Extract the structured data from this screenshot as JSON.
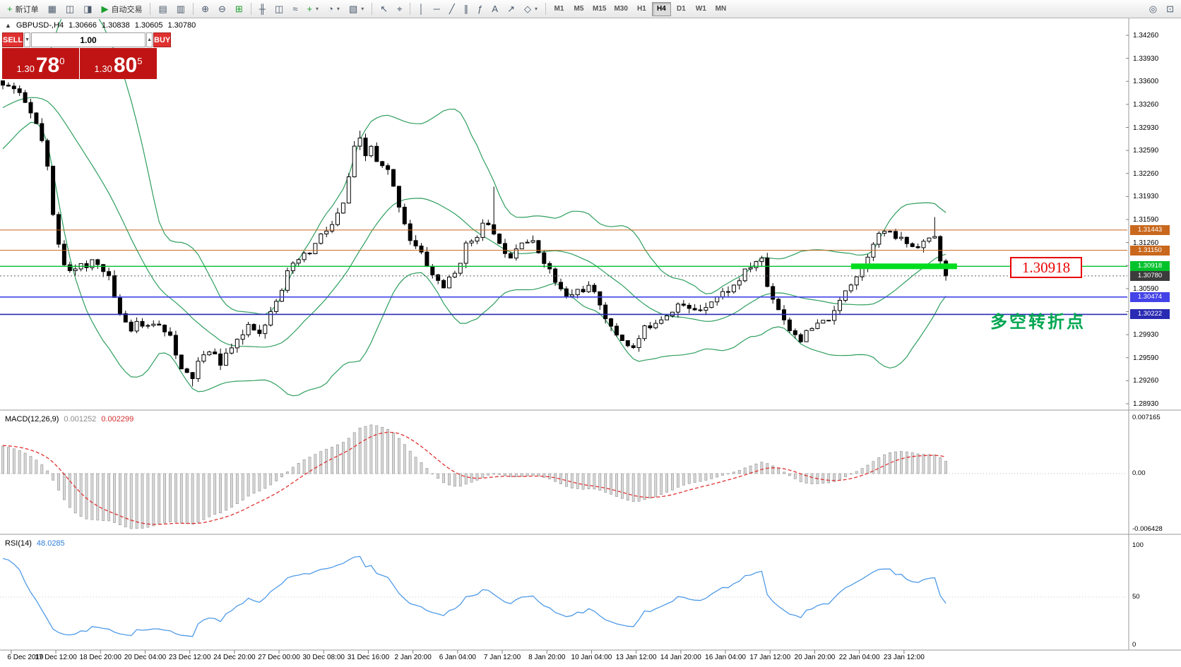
{
  "toolbar": {
    "items": [
      {
        "type": "button",
        "name": "new-order",
        "glyph": "+",
        "glyph_color": "#1b9e2d",
        "label": "新订单"
      },
      {
        "type": "icon",
        "name": "charts",
        "glyph": "▦"
      },
      {
        "type": "icon",
        "name": "market-watch",
        "glyph": "◫"
      },
      {
        "type": "icon",
        "name": "navigator",
        "glyph": "◨"
      },
      {
        "type": "button",
        "name": "auto-trade",
        "glyph": "▶",
        "glyph_color": "#1b9e2d",
        "label": "自动交易"
      },
      {
        "type": "sep"
      },
      {
        "type": "icon",
        "name": "tile-windows",
        "glyph": "▤"
      },
      {
        "type": "icon",
        "name": "cascade-windows",
        "glyph": "▥"
      },
      {
        "type": "sep"
      },
      {
        "type": "icon",
        "name": "zoom-in",
        "glyph": "⊕"
      },
      {
        "type": "icon",
        "name": "zoom-out",
        "glyph": "⊖"
      },
      {
        "type": "icon",
        "name": "grid",
        "glyph": "⊞",
        "glyph_color": "#1b9e2d"
      },
      {
        "type": "sep"
      },
      {
        "type": "icon",
        "name": "bar-chart",
        "glyph": "╫"
      },
      {
        "type": "icon",
        "name": "candlestick-chart",
        "glyph": "◫"
      },
      {
        "type": "icon",
        "name": "line-chart",
        "glyph": "≈"
      },
      {
        "type": "icon",
        "name": "add-indicator",
        "glyph": "+",
        "glyph_color": "#1b9e2d",
        "dropdown": true
      },
      {
        "type": "icon",
        "name": "periods",
        "glyph": "◔",
        "dropdown": true
      },
      {
        "type": "icon",
        "name": "templates",
        "glyph": "▧",
        "dropdown": true
      },
      {
        "type": "sep"
      },
      {
        "type": "icon",
        "name": "cursor",
        "glyph": "↖"
      },
      {
        "type": "icon",
        "name": "crosshair",
        "glyph": "⌖"
      },
      {
        "type": "sep"
      },
      {
        "type": "icon",
        "name": "vertical-line",
        "glyph": "│"
      },
      {
        "type": "icon",
        "name": "horizontal-line",
        "glyph": "─"
      },
      {
        "type": "icon",
        "name": "trendline",
        "glyph": "╱"
      },
      {
        "type": "icon",
        "name": "equidistant-channel",
        "glyph": "∥"
      },
      {
        "type": "icon",
        "name": "fibonacci",
        "glyph": "ƒ"
      },
      {
        "type": "icon",
        "name": "text",
        "glyph": "A"
      },
      {
        "type": "icon",
        "name": "arrow-tool",
        "glyph": "↗"
      },
      {
        "type": "icon",
        "name": "shapes",
        "glyph": "◇",
        "dropdown": true
      },
      {
        "type": "sep"
      },
      {
        "type": "timeframes"
      },
      {
        "type": "spacer"
      },
      {
        "type": "icon",
        "name": "search",
        "glyph": "◎"
      },
      {
        "type": "icon",
        "name": "new-window",
        "glyph": "⊡"
      }
    ],
    "timeframes": [
      "M1",
      "M5",
      "M15",
      "M30",
      "H1",
      "H4",
      "D1",
      "W1",
      "MN"
    ],
    "active_timeframe": "H4"
  },
  "chart_header": {
    "collapse_icon": "▲",
    "symbol": "GBPUSD-,H4",
    "open": "1.30666",
    "high": "1.30838",
    "low": "1.30605",
    "close": "1.30780"
  },
  "quote_panel": {
    "sell_label": "SELL",
    "buy_label": "BUY",
    "volume": "1.00",
    "decrement_icon": "▼",
    "increment_icon": "▲",
    "sell_price": {
      "prefix": "1.30",
      "big": "78",
      "sup": "0"
    },
    "buy_price": {
      "prefix": "1.30",
      "big": "80",
      "sup": "5"
    }
  },
  "levels": [
    {
      "price": 1.31443,
      "label": "1.31443",
      "color": "#c9681d",
      "width": 1
    },
    {
      "price": 1.3115,
      "label": "1.31150",
      "color": "#c9681d",
      "width": 1
    },
    {
      "price": 1.30918,
      "label": "1.30918",
      "color": "#00c22b",
      "width": 1.4,
      "highlight": {
        "from_index": 152,
        "to_index": 171,
        "thickness": 8,
        "color": "#00dd1e"
      }
    },
    {
      "price": 1.3078,
      "label": "1.30780",
      "color": "#3c3c3c",
      "width": 1,
      "style": "dotted",
      "current": true
    },
    {
      "price": 1.30474,
      "label": "1.30474",
      "color": "#4343e8",
      "width": 1.6
    },
    {
      "price": 1.30222,
      "label": "1.30222",
      "color": "#2a2ab4",
      "width": 1.6
    }
  ],
  "annotations": {
    "price_callout": "1.30918",
    "turning_point_note": "多空转折点"
  },
  "price_axis": {
    "labels": [
      "1.34260",
      "1.33930",
      "1.33600",
      "1.33260",
      "1.32930",
      "1.32590",
      "1.32260",
      "1.31930",
      "1.31590",
      "1.31260",
      "1.30930",
      "1.30590",
      "1.30260",
      "1.29930",
      "1.29590",
      "1.29260",
      "1.28930"
    ]
  },
  "time_axis": {
    "labels": [
      "6 Dec 2019",
      "17 Dec 12:00",
      "18 Dec 20:00",
      "20 Dec 04:00",
      "23 Dec 12:00",
      "24 Dec 20:00",
      "27 Dec 00:00",
      "30 Dec 08:00",
      "31 Dec 16:00",
      "2 Jan 20:00",
      "6 Jan 04:00",
      "7 Jan 12:00",
      "8 Jan 20:00",
      "10 Jan 04:00",
      "13 Jan 12:00",
      "14 Jan 20:00",
      "16 Jan 04:00",
      "17 Jan 12:00",
      "20 Jan 20:00",
      "22 Jan 04:00",
      "23 Jan 12:00"
    ]
  },
  "macd_panel": {
    "title": "MACD(12,26,9)",
    "main_value": "0.001252",
    "signal_value": "0.002299",
    "scale_top": "0.007165",
    "scale_mid": "0.00",
    "scale_bottom": "-0.006428"
  },
  "rsi_panel": {
    "title": "RSI(14)",
    "value": "48.0285",
    "scale_top": "100",
    "scale_mid": "50",
    "scale_bottom": "0"
  },
  "colors": {
    "bollinger": "#2e9e5e",
    "candle_up_fill": "#ffffff",
    "candle_down_fill": "#000000",
    "candle_outline": "#000000",
    "macd_hist_fill": "#d8d8d8",
    "macd_hist_stroke": "#8f8f8f",
    "macd_signal": "#e03030",
    "rsi_line": "#4f9be8",
    "separator": "#9a9a9a",
    "current_price_line": "#606060"
  },
  "chart_data": {
    "type": "candlestick",
    "symbol": "GBPUSD-",
    "timeframe": "H4",
    "ohlc": {
      "open": 1.30666,
      "high": 1.30838,
      "low": 1.30605,
      "close": 1.3078
    },
    "ylim": [
      1.2893,
      1.3426
    ],
    "visible_candles": 170,
    "current_price": 1.3078,
    "horizontal_levels": [
      1.31443,
      1.3115,
      1.30918,
      1.30474,
      1.30222
    ],
    "pre_path": [
      [
        -30,
        1.3175
      ],
      [
        -22,
        1.324
      ],
      [
        -14,
        1.33
      ],
      [
        -6,
        1.3345
      ],
      [
        -1,
        1.3356
      ]
    ],
    "price_path": [
      [
        0,
        1.3358
      ],
      [
        1,
        1.3352
      ],
      [
        2,
        1.3348
      ],
      [
        3,
        1.3338
      ],
      [
        4,
        1.3328
      ],
      [
        5,
        1.3312
      ],
      [
        6,
        1.3296
      ],
      [
        7,
        1.3272
      ],
      [
        8,
        1.3232
      ],
      [
        9,
        1.3165
      ],
      [
        10,
        1.3122
      ],
      [
        11,
        1.3097
      ],
      [
        12,
        1.309
      ],
      [
        14,
        1.3093
      ],
      [
        15,
        1.3086
      ],
      [
        16,
        1.31
      ],
      [
        18,
        1.3089
      ],
      [
        19,
        1.3077
      ],
      [
        20,
        1.3042
      ],
      [
        22,
        1.3012
      ],
      [
        23,
        1.3003
      ],
      [
        24,
        1.3013
      ],
      [
        26,
        1.3001
      ],
      [
        27,
        1.3011
      ],
      [
        28,
        1.3006
      ],
      [
        30,
        1.2996
      ],
      [
        31,
        1.2962
      ],
      [
        32,
        1.294
      ],
      [
        34,
        1.2931
      ],
      [
        35,
        1.2953
      ],
      [
        36,
        1.2961
      ],
      [
        38,
        1.2969
      ],
      [
        39,
        1.2948
      ],
      [
        40,
        1.2966
      ],
      [
        42,
        1.2981
      ],
      [
        43,
        1.2993
      ],
      [
        44,
        1.3009
      ],
      [
        46,
        1.2999
      ],
      [
        47,
        1.3006
      ],
      [
        48,
        1.3031
      ],
      [
        50,
        1.3061
      ],
      [
        51,
        1.3081
      ],
      [
        53,
        1.3101
      ],
      [
        55,
        1.3111
      ],
      [
        57,
        1.3136
      ],
      [
        59,
        1.3151
      ],
      [
        61,
        1.3181
      ],
      [
        63,
        1.3261
      ],
      [
        64,
        1.3273
      ],
      [
        65,
        1.3251
      ],
      [
        66,
        1.3266
      ],
      [
        67,
        1.3241
      ],
      [
        69,
        1.3229
      ],
      [
        71,
        1.3181
      ],
      [
        73,
        1.3131
      ],
      [
        75,
        1.3109
      ],
      [
        77,
        1.3079
      ],
      [
        79,
        1.3063
      ],
      [
        81,
        1.3081
      ],
      [
        83,
        1.3121
      ],
      [
        85,
        1.3139
      ],
      [
        86,
        1.3151
      ],
      [
        88,
        1.3143
      ],
      [
        89,
        1.3121
      ],
      [
        91,
        1.3109
      ],
      [
        93,
        1.3131
      ],
      [
        95,
        1.3125
      ],
      [
        97,
        1.3101
      ],
      [
        99,
        1.3069
      ],
      [
        101,
        1.3046
      ],
      [
        103,
        1.3057
      ],
      [
        105,
        1.3061
      ],
      [
        107,
        1.3039
      ],
      [
        109,
        1.3001
      ],
      [
        111,
        1.2986
      ],
      [
        113,
        1.2973
      ],
      [
        115,
        1.3001
      ],
      [
        117,
        1.3013
      ],
      [
        119,
        1.3023
      ],
      [
        121,
        1.3037
      ],
      [
        123,
        1.3029
      ],
      [
        125,
        1.3031
      ],
      [
        127,
        1.3043
      ],
      [
        129,
        1.3053
      ],
      [
        131,
        1.3063
      ],
      [
        133,
        1.3083
      ],
      [
        135,
        1.3099
      ],
      [
        136,
        1.3103
      ],
      [
        137,
        1.3063
      ],
      [
        139,
        1.3031
      ],
      [
        141,
        1.3001
      ],
      [
        143,
        1.2987
      ],
      [
        145,
        1.3001
      ],
      [
        147,
        1.3011
      ],
      [
        149,
        1.3023
      ],
      [
        151,
        1.3059
      ],
      [
        153,
        1.3079
      ],
      [
        154,
        1.3089
      ],
      [
        156,
        1.3129
      ],
      [
        158,
        1.3143
      ],
      [
        159,
        1.3137
      ],
      [
        161,
        1.3131
      ],
      [
        163,
        1.3121
      ],
      [
        165,
        1.3127
      ],
      [
        166,
        1.3129
      ],
      [
        167,
        1.3136
      ],
      [
        168,
        1.3096
      ],
      [
        169,
        1.3078
      ]
    ],
    "wick_extremes": [
      [
        64,
        "high",
        1.3288
      ],
      [
        88,
        "high",
        1.3207
      ],
      [
        167,
        "high",
        1.3163
      ],
      [
        34,
        "low",
        1.2918
      ]
    ],
    "indicators": [
      {
        "name": "Bollinger Bands",
        "period": 20,
        "deviation": 2
      },
      {
        "name": "MACD",
        "fast": 12,
        "slow": 26,
        "signal": 9,
        "values": [
          0.001252,
          0.002299
        ],
        "scale": [
          -0.006428,
          0.007165
        ]
      },
      {
        "name": "RSI",
        "period": 14,
        "value": 48.0285
      }
    ]
  }
}
